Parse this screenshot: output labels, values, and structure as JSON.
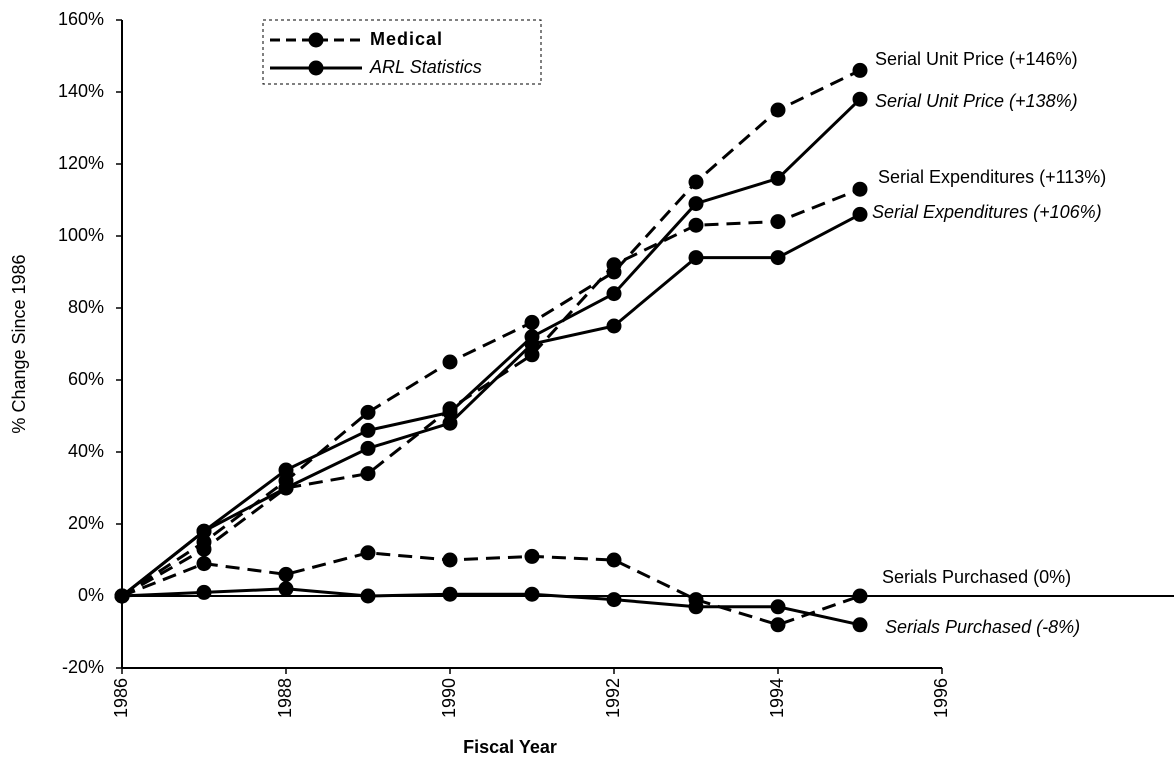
{
  "chart_data": {
    "type": "line",
    "x_label": "Fiscal Year",
    "y_label": "% Change Since 1986",
    "x": [
      1986,
      1987,
      1988,
      1989,
      1990,
      1991,
      1992,
      1993,
      1994,
      1995
    ],
    "xlim": [
      1986,
      1996
    ],
    "xticks": [
      1986,
      1988,
      1990,
      1992,
      1994,
      1996
    ],
    "ylim": [
      -20,
      160
    ],
    "yticks": [
      {
        "value": -20,
        "label": "-20%"
      },
      {
        "value": 0,
        "label": "0%"
      },
      {
        "value": 20,
        "label": "20%"
      },
      {
        "value": 40,
        "label": "40%"
      },
      {
        "value": 60,
        "label": "60%"
      },
      {
        "value": 80,
        "label": "80%"
      },
      {
        "value": 100,
        "label": "100%"
      },
      {
        "value": 120,
        "label": "120%"
      },
      {
        "value": 140,
        "label": "140%"
      },
      {
        "value": 160,
        "label": "160%"
      }
    ],
    "legend": [
      {
        "label": "Medical",
        "dashed": true
      },
      {
        "label": "ARL Statistics",
        "dashed": false
      }
    ],
    "series": [
      {
        "name": "Serial Unit Price (+146%)",
        "color": "#000000",
        "dashed": true,
        "values": [
          0,
          15,
          32,
          51,
          65,
          76,
          90,
          115,
          135,
          146
        ]
      },
      {
        "name": "Serial Unit Price (+138%)",
        "color": "#000000",
        "dashed": false,
        "values": [
          0,
          18,
          35,
          46,
          51,
          72,
          84,
          109,
          116,
          138
        ]
      },
      {
        "name": "Serial Expenditures (+113%)",
        "color": "#000000",
        "dashed": true,
        "values": [
          0,
          13,
          30,
          34,
          52,
          67,
          92,
          103,
          104,
          113
        ]
      },
      {
        "name": "Serial Expenditures (+106%)",
        "color": "#000000",
        "dashed": false,
        "values": [
          0,
          18,
          30,
          41,
          48,
          70,
          75,
          94,
          94,
          106
        ]
      },
      {
        "name": "Serials Purchased (0%)",
        "color": "#000000",
        "dashed": true,
        "values": [
          0,
          9,
          6,
          12,
          10,
          11,
          10,
          -1,
          -8,
          0
        ]
      },
      {
        "name": "Serials Purchased (-8%)",
        "color": "#000000",
        "dashed": false,
        "values": [
          0,
          1,
          2,
          0,
          0.5,
          0.5,
          -1,
          -3,
          -3,
          -8
        ]
      }
    ]
  }
}
